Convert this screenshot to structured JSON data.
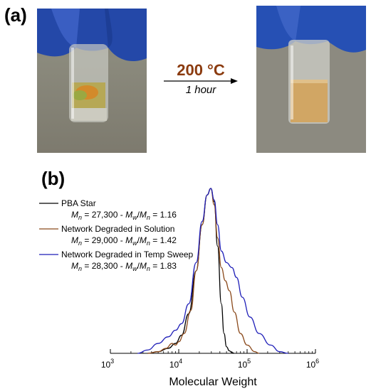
{
  "panel_a": {
    "label": "(a)",
    "arrow_top": "200 °C",
    "arrow_bottom": "1 hour"
  },
  "panel_b": {
    "label": "(b)"
  },
  "chart_data": {
    "type": "line",
    "xlabel": "Molecular Weight",
    "x_scale": "log",
    "xlim": [
      1000,
      1000000
    ],
    "ylim": [
      0,
      1
    ],
    "x_ticks": [
      {
        "base": "10",
        "exp": "3"
      },
      {
        "base": "10",
        "exp": "4"
      },
      {
        "base": "10",
        "exp": "5"
      },
      {
        "base": "10",
        "exp": "6"
      }
    ],
    "legend_placement": "top-left",
    "colors": {
      "pba_star": "#000000",
      "solution": "#8b4a1c",
      "temp_sweep": "#1f1fb8"
    },
    "series": [
      {
        "name": "PBA Star",
        "mn_text": "27,300",
        "pdi_text": "1.16",
        "color": "#000000",
        "x": [
          3500,
          5000,
          7000,
          9000,
          11000,
          14000,
          18000,
          22000,
          26000,
          29500,
          33000,
          37000,
          42000,
          46000,
          50000,
          55000,
          60000,
          65000
        ],
        "y": [
          0,
          0.01,
          0.03,
          0.06,
          0.11,
          0.24,
          0.5,
          0.78,
          0.96,
          1.0,
          0.92,
          0.65,
          0.3,
          0.12,
          0.04,
          0.015,
          0.005,
          0
        ]
      },
      {
        "name": "Network Degraded in Solution",
        "mn_text": "29,000",
        "pdi_text": "1.42",
        "color": "#8b4a1c",
        "x": [
          3500,
          5000,
          6500,
          8000,
          9000,
          10000,
          12000,
          15000,
          18000,
          22000,
          26000,
          29500,
          33000,
          37000,
          42000,
          48000,
          55000,
          65000,
          80000,
          100000,
          130000,
          150000
        ],
        "y": [
          0,
          0.01,
          0.03,
          0.06,
          0.05,
          0.07,
          0.12,
          0.26,
          0.5,
          0.78,
          0.96,
          1.0,
          0.9,
          0.7,
          0.52,
          0.44,
          0.38,
          0.25,
          0.12,
          0.05,
          0.01,
          0
        ]
      },
      {
        "name": "Network Degraded in Temp Sweep",
        "mn_text": "28,300",
        "pdi_text": "1.83",
        "color": "#1f1fb8",
        "x": [
          2500,
          3500,
          5000,
          7000,
          9000,
          11000,
          14000,
          18000,
          22000,
          26000,
          29500,
          33000,
          37000,
          42000,
          50000,
          60000,
          70000,
          85000,
          110000,
          150000,
          220000,
          300000,
          400000
        ],
        "y": [
          0,
          0.02,
          0.06,
          0.1,
          0.14,
          0.18,
          0.3,
          0.55,
          0.8,
          0.96,
          1.0,
          0.93,
          0.78,
          0.62,
          0.55,
          0.52,
          0.46,
          0.34,
          0.22,
          0.12,
          0.05,
          0.01,
          0
        ]
      }
    ]
  }
}
